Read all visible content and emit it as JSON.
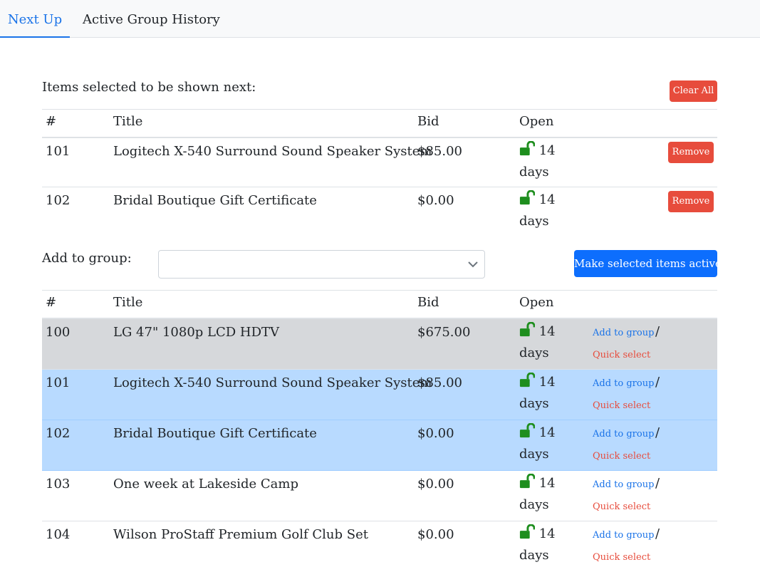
{
  "tabs": [
    {
      "label": "Next Up",
      "active": true
    },
    {
      "label": "Active Group History",
      "active": false
    }
  ],
  "next_section": {
    "title": "Items selected to be shown next:",
    "clear_all_label": "Clear All",
    "headers": {
      "num": "#",
      "title": "Title",
      "bid": "Bid",
      "open": "Open"
    },
    "rows": [
      {
        "num": "101",
        "title": "Logitech X-540 Surround Sound Speaker System",
        "bid": "$85.00",
        "open_a": "14",
        "open_b": "days",
        "action": "Remove"
      },
      {
        "num": "102",
        "title": "Bridal Boutique Gift Certificate",
        "bid": "$0.00",
        "open_a": "14",
        "open_b": "days",
        "action": "Remove"
      }
    ]
  },
  "group": {
    "label": "Add to group:",
    "select_value": "",
    "make_active_label": "Make selected items active"
  },
  "items": {
    "headers": {
      "num": "#",
      "title": "Title",
      "bid": "Bid",
      "open": "Open"
    },
    "add_label": "Add to group",
    "separator": "/",
    "quick_label": "Quick select",
    "rows": [
      {
        "num": "100",
        "title": "LG 47\" 1080p LCD HDTV",
        "bid": "$675.00",
        "open_a": "14",
        "open_b": "days",
        "state": "hover"
      },
      {
        "num": "101",
        "title": "Logitech X-540 Surround Sound Speaker System",
        "bid": "$85.00",
        "open_a": "14",
        "open_b": "days",
        "state": "selected"
      },
      {
        "num": "102",
        "title": "Bridal Boutique Gift Certificate",
        "bid": "$0.00",
        "open_a": "14",
        "open_b": "days",
        "state": "selected"
      },
      {
        "num": "103",
        "title": "One week at Lakeside Camp",
        "bid": "$0.00",
        "open_a": "14",
        "open_b": "days",
        "state": "normal"
      },
      {
        "num": "104",
        "title": "Wilson ProStaff Premium Golf Club Set",
        "bid": "$0.00",
        "open_a": "14",
        "open_b": "days",
        "state": "normal"
      }
    ]
  },
  "colors": {
    "accent": "#1a73e8",
    "danger": "#e74c3c",
    "primary": "#0d6efd",
    "selected_row": "#b8daff",
    "hover_row": "#d6d8db",
    "lock": "#1e8e1e"
  },
  "icons": {
    "open": "unlocked-padlock-icon",
    "select": "chevron-down-icon"
  }
}
